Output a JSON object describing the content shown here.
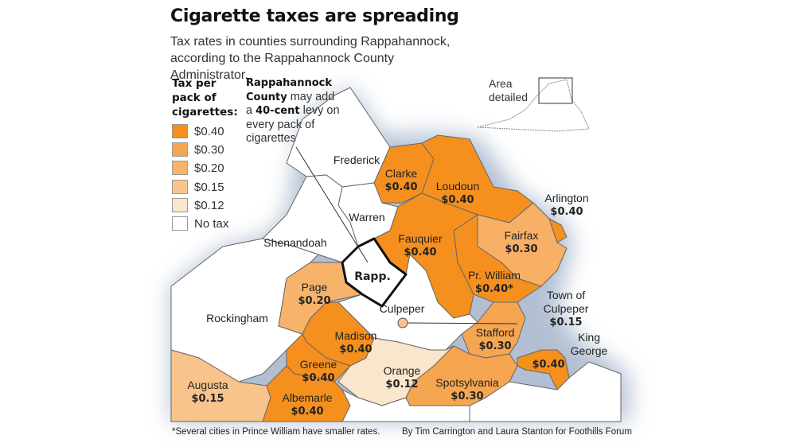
{
  "title": "Cigarette taxes are spreading",
  "subtitle": "Tax rates in counties surrounding Rappahannock, according to the Rappahannock County Administrator.",
  "colors": {
    "r040": "#f5901e",
    "r030": "#f6a550",
    "r020": "#f7b36a",
    "r015": "#f8c48b",
    "r012": "#f9e6cc",
    "none": "#ffffff"
  },
  "legend": {
    "title_lines": [
      "Tax per",
      "pack of",
      "cigarettes:"
    ],
    "items": [
      {
        "label": "$0.40",
        "color": "#f5901e"
      },
      {
        "label": "$0.30",
        "color": "#f6a550"
      },
      {
        "label": "$0.20",
        "color": "#f7b36a"
      },
      {
        "label": "$0.15",
        "color": "#f8c48b"
      },
      {
        "label": "$0.12",
        "color": "#f9e6cc"
      },
      {
        "label": "No tax",
        "color": "#ffffff"
      }
    ]
  },
  "note": {
    "bold1": "Rappahannock County",
    "t1": " may add a ",
    "bold2": "40-cent",
    "t2": " levy on every pack of cigarettes"
  },
  "inset": {
    "label": "Area detailed"
  },
  "counties": {
    "frederick": {
      "name": "Frederick"
    },
    "clarke": {
      "name": "Clarke",
      "rate": "$0.40"
    },
    "loudoun": {
      "name": "Loudoun",
      "rate": "$0.40"
    },
    "arlington": {
      "name": "Arlington",
      "rate": "$0.40"
    },
    "warren": {
      "name": "Warren"
    },
    "shenandoah": {
      "name": "Shenandoah"
    },
    "fauquier": {
      "name": "Fauquier",
      "rate": "$0.40"
    },
    "fairfax": {
      "name": "Fairfax",
      "rate": "$0.30"
    },
    "rapp": {
      "name": "Rapp."
    },
    "pr_william": {
      "name": "Pr. William",
      "rate": "$0.40*"
    },
    "page": {
      "name": "Page",
      "rate": "$0.20"
    },
    "culpeper": {
      "name": "Culpeper"
    },
    "town_culpeper": {
      "name_lines": [
        "Town of",
        "Culpeper"
      ],
      "rate": "$0.15"
    },
    "rockingham": {
      "name": "Rockingham"
    },
    "madison": {
      "name": "Madison",
      "rate": "$0.40"
    },
    "stafford": {
      "name": "Stafford",
      "rate": "$0.30"
    },
    "king_george": {
      "name_lines": [
        "King",
        "George"
      ],
      "rate": "$0.40"
    },
    "greene": {
      "name": "Greene",
      "rate": "$0.40"
    },
    "orange": {
      "name": "Orange",
      "rate": "$0.12"
    },
    "spotsylvania": {
      "name": "Spotsylvania",
      "rate": "$0.30"
    },
    "augusta": {
      "name": "Augusta",
      "rate": "$0.15"
    },
    "albemarle": {
      "name": "Albemarle",
      "rate": "$0.40"
    }
  },
  "footnote": "*Several cities in Prince William have smaller rates.",
  "credit": "By Tim Carrington and Laura Stanton for Foothills Forum"
}
